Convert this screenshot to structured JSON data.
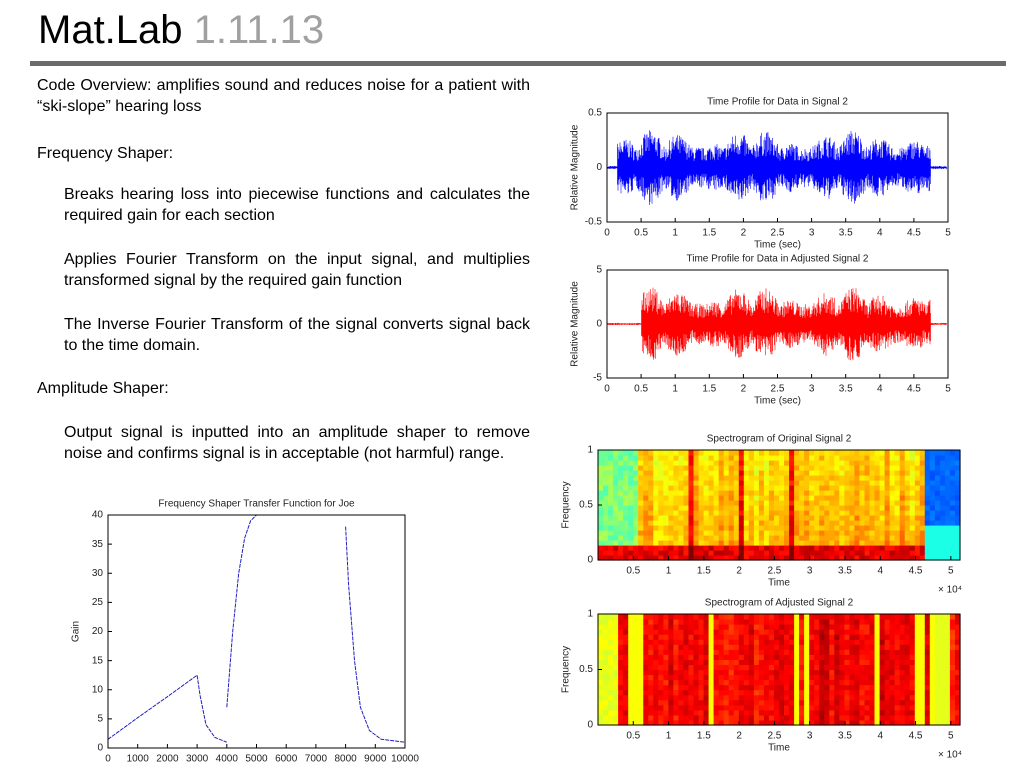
{
  "slide": {
    "title": "Mat.Lab",
    "subtitle": "1.11.13",
    "overview": "Code Overview: amplifies sound and reduces noise for a patient with “ski-slope” hearing loss",
    "sections": [
      {
        "heading": "Frequency Shaper:",
        "items": [
          "Breaks hearing loss into piecewise functions and calculates the required gain for each section",
          "Applies Fourier Transform on the input signal, and multiplies transformed signal by the required gain function",
          "The Inverse Fourier Transform of the signal converts signal back to the time domain."
        ]
      },
      {
        "heading": "Amplitude Shaper:",
        "items": [
          "Output signal is inputted into an amplitude shaper to remove noise and confirms signal is in acceptable (not harmful) range."
        ]
      }
    ]
  },
  "chart_data": [
    {
      "type": "line",
      "title": "Frequency Shaper Transfer Function for Joe",
      "ylabel": "Gain",
      "x": [
        0,
        1000,
        2000,
        3000,
        3100,
        3300,
        3600,
        3900,
        4000,
        4000,
        4000,
        4200,
        4400,
        4600,
        4800,
        5000,
        5500,
        6500,
        8000,
        8100,
        8300,
        8500,
        8800,
        9200,
        10000
      ],
      "values": [
        1.5,
        5.2,
        8.8,
        12.5,
        9,
        4,
        1.8,
        1.2,
        1,
        null,
        7,
        20,
        30,
        36,
        39,
        40,
        40,
        null,
        38,
        28,
        15,
        7,
        3,
        1.5,
        1
      ],
      "color": "#2020c0",
      "xlim": [
        0,
        10000
      ],
      "xticks": [
        0,
        1000,
        2000,
        3000,
        4000,
        5000,
        6000,
        7000,
        8000,
        9000,
        10000
      ],
      "ylim": [
        0,
        40
      ],
      "yticks": [
        0,
        5,
        10,
        15,
        20,
        25,
        30,
        35,
        40
      ]
    },
    {
      "type": "waveform",
      "title": "Time Profile for Data in Signal 2",
      "xlabel": "Time (sec)",
      "ylabel": "Relative Magnitude",
      "color": "#0000ff",
      "xlim": [
        0,
        5
      ],
      "xticks": [
        0,
        0.5,
        1,
        1.5,
        2,
        2.5,
        3,
        3.5,
        4,
        4.5,
        5
      ],
      "ylim": [
        -0.5,
        0.5
      ],
      "yticks": [
        -0.5,
        0,
        0.5
      ]
    },
    {
      "type": "waveform",
      "title": "Time Profile for Data in Adjusted Signal 2",
      "xlabel": "Time (sec)",
      "ylabel": "Relative Magnitude",
      "color": "#ff0000",
      "xlim": [
        0,
        5
      ],
      "xticks": [
        0,
        0.5,
        1,
        1.5,
        2,
        2.5,
        3,
        3.5,
        4,
        4.5,
        5
      ],
      "ylim": [
        -5,
        5
      ],
      "yticks": [
        -5,
        0,
        5
      ]
    },
    {
      "type": "spectrogram",
      "title": "Spectrogram of Original Signal 2",
      "xlabel": "Time",
      "ylabel": "Frequency",
      "x_multiplier": "× 10⁴",
      "xlim": [
        0,
        5.13
      ],
      "xticks": [
        0.5,
        1,
        1.5,
        2,
        2.5,
        3,
        3.5,
        4,
        4.5,
        5
      ],
      "ylim": [
        0,
        1
      ],
      "yticks": [
        0,
        0.5,
        1
      ]
    },
    {
      "type": "spectrogram",
      "title": "Spectrogram of Adjusted Signal 2",
      "xlabel": "Time",
      "ylabel": "Frequency",
      "x_multiplier": "× 10⁴",
      "xlim": [
        0,
        5.13
      ],
      "xticks": [
        0.5,
        1,
        1.5,
        2,
        2.5,
        3,
        3.5,
        4,
        4.5,
        5
      ],
      "ylim": [
        0,
        1
      ],
      "yticks": [
        0,
        0.5,
        1
      ]
    }
  ]
}
